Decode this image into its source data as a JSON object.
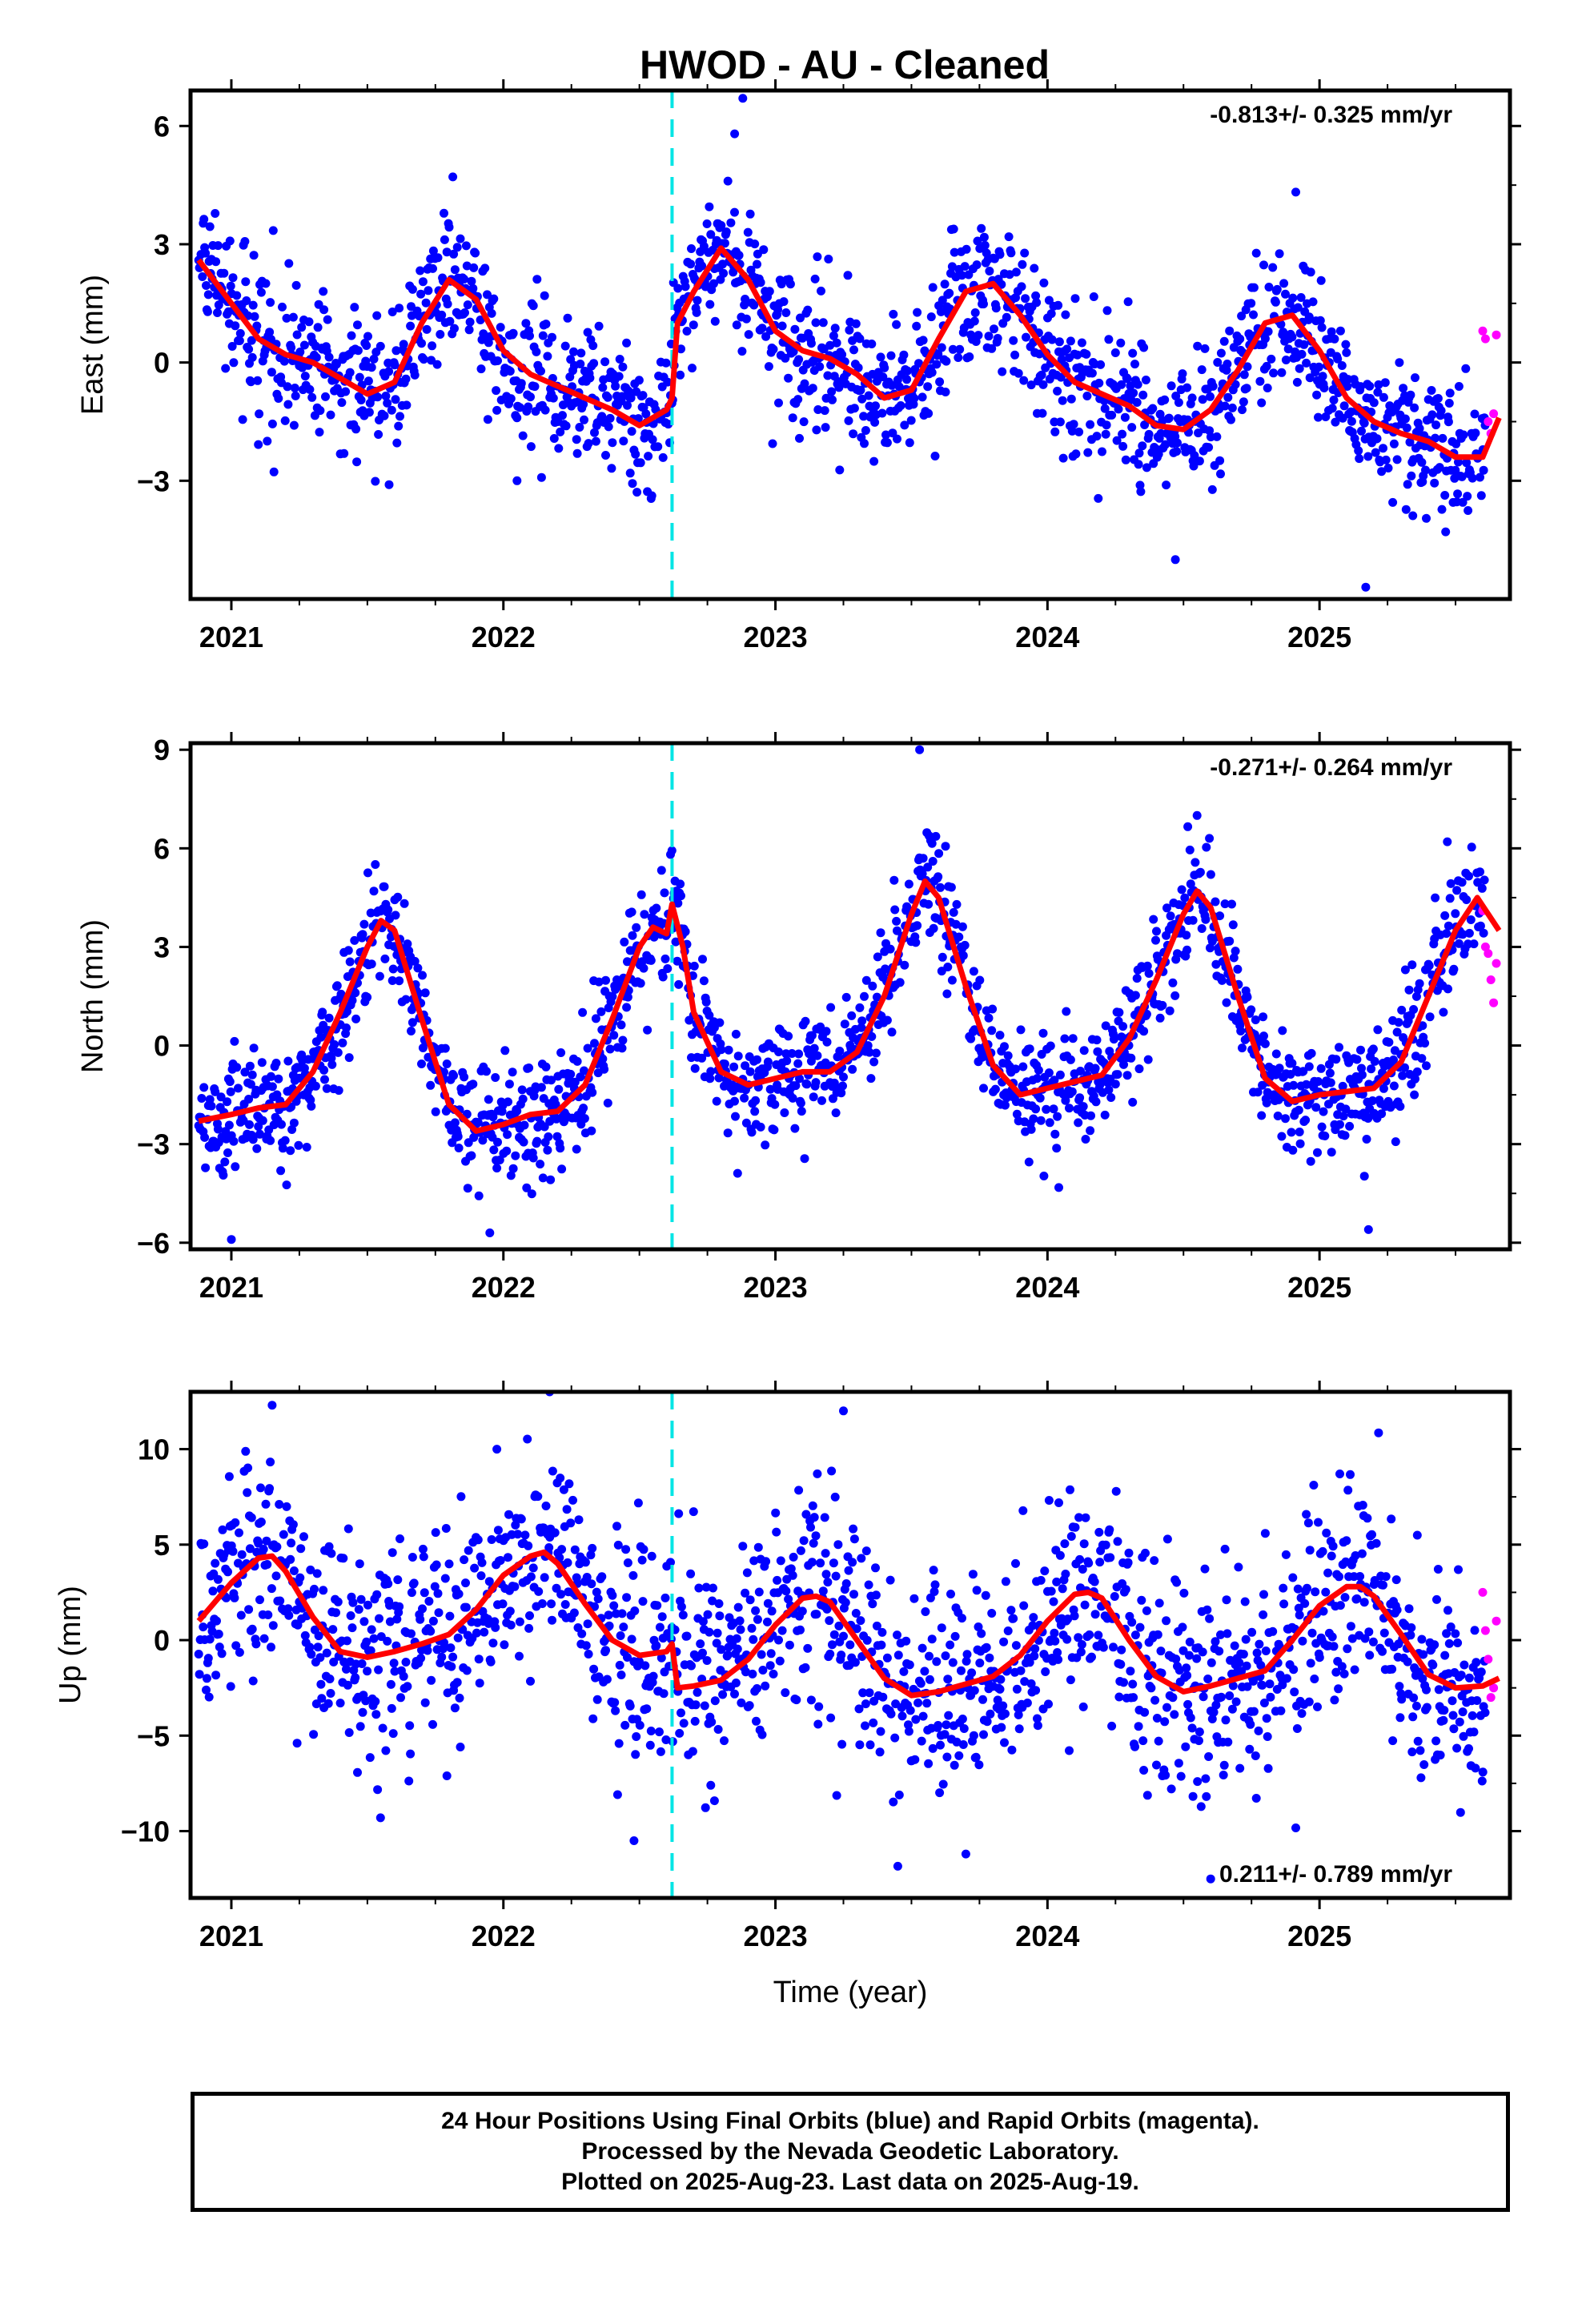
{
  "title": "HWOD  - AU - Cleaned",
  "colors": {
    "final": "#0000ff",
    "rapid": "#ff00ff",
    "model": "#ff0000",
    "offset": "#00e5e5"
  },
  "footer": {
    "line1": "24 Hour Positions Using Final Orbits (blue) and Rapid Orbits (magenta).",
    "line2": "Processed by the Nevada Geodetic Laboratory.",
    "line3": "Plotted on 2025-Aug-23. Last data on 2025-Aug-19."
  },
  "chart_data": [
    {
      "type": "scatter",
      "component": "east",
      "ylabel": "East (mm)",
      "xlabel": "",
      "rate": "-0.813+/- 0.325 mm/yr",
      "xlim": [
        2020.85,
        2025.7
      ],
      "ylim": [
        -6.0,
        6.9
      ],
      "yticks": [
        -3,
        0,
        3,
        6
      ],
      "xticks": [
        2021,
        2022,
        2023,
        2024,
        2025
      ],
      "x_tick_labels": [
        "2021",
        "2022",
        "2023",
        "2024",
        "2025"
      ],
      "offset_epoch": 2022.62,
      "scatter_sd": 0.9,
      "outliers": [
        [
          2022.88,
          6.7
        ],
        [
          2025.17,
          -5.7
        ],
        [
          2024.47,
          -5.0
        ],
        [
          2021.58,
          -3.1
        ],
        [
          2022.05,
          -3.0
        ],
        [
          2022.85,
          5.8
        ]
      ],
      "model_series": {
        "name": "model",
        "x": [
          2020.88,
          2021.0,
          2021.1,
          2021.2,
          2021.3,
          2021.4,
          2021.5,
          2021.6,
          2021.7,
          2021.8,
          2021.9,
          2022.0,
          2022.1,
          2022.2,
          2022.3,
          2022.4,
          2022.5,
          2022.6,
          2022.62,
          2022.64,
          2022.7,
          2022.8,
          2022.9,
          2023.0,
          2023.1,
          2023.2,
          2023.3,
          2023.4,
          2023.5,
          2023.6,
          2023.7,
          2023.8,
          2023.9,
          2024.0,
          2024.1,
          2024.2,
          2024.3,
          2024.4,
          2024.5,
          2024.6,
          2024.7,
          2024.8,
          2024.9,
          2025.0,
          2025.1,
          2025.2,
          2025.3,
          2025.4,
          2025.5,
          2025.6,
          2025.66
        ],
        "y": [
          2.6,
          1.5,
          0.6,
          0.2,
          0.0,
          -0.4,
          -0.8,
          -0.5,
          1.0,
          2.1,
          1.6,
          0.3,
          -0.3,
          -0.6,
          -0.9,
          -1.2,
          -1.6,
          -1.2,
          -0.9,
          1.0,
          1.8,
          2.9,
          2.1,
          0.8,
          0.3,
          0.1,
          -0.3,
          -0.9,
          -0.7,
          0.6,
          1.8,
          2.0,
          1.2,
          0.2,
          -0.5,
          -0.8,
          -1.1,
          -1.6,
          -1.7,
          -1.2,
          -0.2,
          1.0,
          1.2,
          0.3,
          -0.9,
          -1.5,
          -1.8,
          -2.0,
          -2.4,
          -2.4,
          -1.4
        ]
      },
      "rapid_points": {
        "x": [
          2025.6,
          2025.61,
          2025.62,
          2025.63,
          2025.64,
          2025.65
        ],
        "y": [
          0.8,
          0.6,
          -1.5,
          -1.8,
          -1.3,
          0.7
        ]
      }
    },
    {
      "type": "scatter",
      "component": "north",
      "ylabel": "North (mm)",
      "xlabel": "",
      "rate": "-0.271+/- 0.264 mm/yr",
      "xlim": [
        2020.85,
        2025.7
      ],
      "ylim": [
        -6.2,
        9.2
      ],
      "yticks": [
        -6,
        -3,
        0,
        3,
        6,
        9
      ],
      "xticks": [
        2021,
        2022,
        2023,
        2024,
        2025
      ],
      "x_tick_labels": [
        "2021",
        "2022",
        "2023",
        "2024",
        "2025"
      ],
      "offset_epoch": 2022.62,
      "scatter_sd": 0.9,
      "outliers": [
        [
          2021.0,
          -5.9
        ],
        [
          2023.53,
          9.0
        ],
        [
          2025.18,
          -5.6
        ],
        [
          2021.95,
          -5.7
        ],
        [
          2024.55,
          7.0
        ],
        [
          2025.47,
          6.2
        ]
      ],
      "model_series": {
        "name": "model",
        "x": [
          2020.88,
          2021.0,
          2021.1,
          2021.2,
          2021.3,
          2021.4,
          2021.5,
          2021.55,
          2021.6,
          2021.7,
          2021.8,
          2021.9,
          2022.0,
          2022.1,
          2022.2,
          2022.3,
          2022.4,
          2022.5,
          2022.55,
          2022.6,
          2022.62,
          2022.66,
          2022.7,
          2022.8,
          2022.9,
          2023.0,
          2023.1,
          2023.2,
          2023.3,
          2023.4,
          2023.5,
          2023.55,
          2023.6,
          2023.7,
          2023.8,
          2023.9,
          2024.0,
          2024.1,
          2024.2,
          2024.3,
          2024.4,
          2024.5,
          2024.55,
          2024.6,
          2024.7,
          2024.8,
          2024.9,
          2025.0,
          2025.1,
          2025.2,
          2025.3,
          2025.4,
          2025.5,
          2025.58,
          2025.66
        ],
        "y": [
          -2.3,
          -2.1,
          -1.9,
          -1.8,
          -0.8,
          1.0,
          3.0,
          3.8,
          3.5,
          0.8,
          -1.8,
          -2.6,
          -2.4,
          -2.1,
          -2.0,
          -1.2,
          0.8,
          3.0,
          3.6,
          3.4,
          4.3,
          3.0,
          1.0,
          -0.8,
          -1.2,
          -1.0,
          -0.8,
          -0.8,
          -0.2,
          1.5,
          4.0,
          5.0,
          4.5,
          1.8,
          -0.6,
          -1.5,
          -1.3,
          -1.1,
          -0.9,
          0.2,
          2.0,
          4.0,
          4.7,
          4.2,
          1.5,
          -1.0,
          -1.7,
          -1.5,
          -1.4,
          -1.3,
          -0.5,
          1.5,
          3.5,
          4.5,
          3.5
        ]
      },
      "rapid_points": {
        "x": [
          2025.6,
          2025.61,
          2025.62,
          2025.63,
          2025.64,
          2025.65
        ],
        "y": [
          4.1,
          3.0,
          2.8,
          2.0,
          1.3,
          2.5
        ]
      }
    },
    {
      "type": "scatter",
      "component": "up",
      "ylabel": "Up (mm)",
      "xlabel": "Time (year)",
      "rate": "0.211+/- 0.789 mm/yr",
      "xlim": [
        2020.85,
        2025.7
      ],
      "ylim": [
        -13.5,
        13.0
      ],
      "yticks": [
        -10,
        -5,
        0,
        5,
        10
      ],
      "xticks": [
        2021,
        2022,
        2023,
        2024,
        2025
      ],
      "x_tick_labels": [
        "2021",
        "2022",
        "2023",
        "2024",
        "2025"
      ],
      "offset_epoch": 2022.62,
      "scatter_sd": 2.8,
      "outliers": [
        [
          2022.17,
          13.0
        ],
        [
          2023.25,
          12.0
        ],
        [
          2021.15,
          12.3
        ],
        [
          2024.6,
          -12.5
        ],
        [
          2022.48,
          -10.5
        ],
        [
          2023.7,
          -11.2
        ]
      ],
      "model_series": {
        "name": "model",
        "x": [
          2020.88,
          2021.0,
          2021.1,
          2021.15,
          2021.2,
          2021.3,
          2021.4,
          2021.5,
          2021.6,
          2021.7,
          2021.8,
          2021.9,
          2022.0,
          2022.1,
          2022.15,
          2022.2,
          2022.3,
          2022.4,
          2022.5,
          2022.6,
          2022.62,
          2022.64,
          2022.7,
          2022.8,
          2022.9,
          2023.0,
          2023.1,
          2023.15,
          2023.2,
          2023.3,
          2023.4,
          2023.5,
          2023.6,
          2023.7,
          2023.8,
          2023.9,
          2024.0,
          2024.1,
          2024.15,
          2024.2,
          2024.3,
          2024.4,
          2024.5,
          2024.6,
          2024.7,
          2024.8,
          2024.9,
          2025.0,
          2025.1,
          2025.15,
          2025.2,
          2025.3,
          2025.4,
          2025.5,
          2025.6,
          2025.66
        ],
        "y": [
          1.0,
          3.0,
          4.3,
          4.4,
          3.6,
          1.2,
          -0.6,
          -0.9,
          -0.6,
          -0.2,
          0.3,
          1.6,
          3.4,
          4.4,
          4.6,
          4.0,
          1.9,
          0.0,
          -0.8,
          -0.6,
          -0.2,
          -2.5,
          -2.4,
          -2.1,
          -1.0,
          0.8,
          2.2,
          2.3,
          2.0,
          0.0,
          -2.0,
          -2.9,
          -2.7,
          -2.3,
          -1.9,
          -0.8,
          1.0,
          2.4,
          2.5,
          2.2,
          0.0,
          -1.9,
          -2.7,
          -2.4,
          -2.0,
          -1.6,
          0.0,
          1.8,
          2.8,
          2.8,
          2.3,
          0.3,
          -1.8,
          -2.5,
          -2.4,
          -2.0
        ]
      },
      "rapid_points": {
        "x": [
          2025.6,
          2025.61,
          2025.62,
          2025.63,
          2025.64,
          2025.65
        ],
        "y": [
          2.5,
          0.5,
          -1.0,
          -3.0,
          -2.5,
          1.0
        ]
      }
    }
  ]
}
